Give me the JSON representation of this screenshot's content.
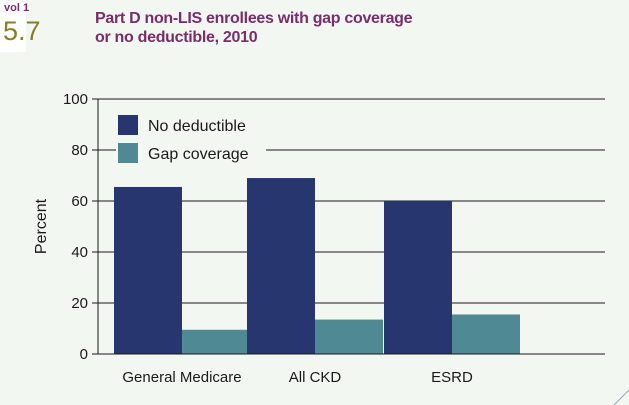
{
  "header": {
    "vol_label": "vol 1",
    "figure_number": "5.7",
    "title": "Part D non-LIS enrollees with gap coverage or no deductible, 2010"
  },
  "colors": {
    "no_deductible": "#283670",
    "gap_coverage": "#4f8a94",
    "title": "#7b2c6e",
    "background": "#f3f7f1"
  },
  "chart_data": {
    "type": "bar",
    "title": "Part D non-LIS enrollees with gap coverage or no deductible, 2010",
    "xlabel": "",
    "ylabel": "Percent",
    "categories": [
      "General Medicare",
      "All CKD",
      "ESRD"
    ],
    "series": [
      {
        "name": "No deductible",
        "values": [
          65.5,
          69,
          60
        ]
      },
      {
        "name": "Gap coverage",
        "values": [
          9.5,
          13.5,
          15.5
        ]
      }
    ],
    "ylim": [
      0,
      100
    ],
    "yticks": [
      0,
      20,
      40,
      60,
      80,
      100
    ],
    "grid": true,
    "legend_position": "top-left"
  }
}
